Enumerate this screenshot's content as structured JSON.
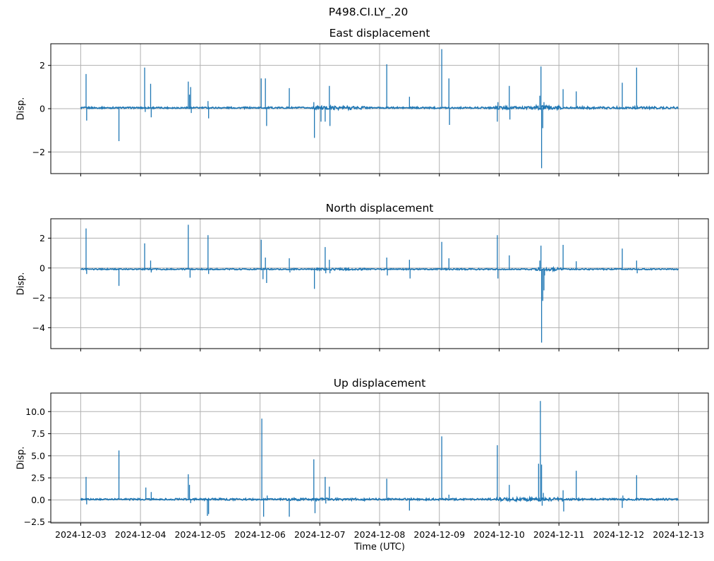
{
  "figure": {
    "suptitle": "P498.CI.LY_.20",
    "xlabel": "Time (UTC)",
    "line_color": "#1f77b4",
    "grid_color": "#b0b0b0",
    "frame_color": "#000000",
    "x_tick_labels": [
      "2024-12-03",
      "2024-12-04",
      "2024-12-05",
      "2024-12-06",
      "2024-12-07",
      "2024-12-08",
      "2024-12-09",
      "2024-12-10",
      "2024-12-11",
      "2024-12-12",
      "2024-12-13"
    ]
  },
  "chart_data": [
    {
      "type": "line",
      "title": "East displacement",
      "ylabel": "Disp.",
      "x_units": "days since 2024-12-03 00:00 UTC",
      "x_data_range_days": [
        0,
        10
      ],
      "xlim_days": [
        -0.5,
        10.5
      ],
      "ylim": [
        -3.0,
        3.0
      ],
      "yticks": [
        2,
        0,
        -2
      ],
      "ytick_labels": [
        "2",
        "0",
        "−2"
      ],
      "grid": true,
      "baseline": 0.04,
      "noise_base": 0.035,
      "noise_spans": [
        [
          3.9,
          4.75,
          0.08
        ],
        [
          6.9,
          7.6,
          0.06
        ],
        [
          7.6,
          8.05,
          0.1
        ],
        [
          8.3,
          9.95,
          0.05
        ]
      ],
      "spikes_day_value": [
        [
          0.09,
          1.6
        ],
        [
          0.1,
          -0.55
        ],
        [
          0.64,
          -1.5
        ],
        [
          1.07,
          1.9
        ],
        [
          1.08,
          -0.15
        ],
        [
          1.17,
          1.15
        ],
        [
          1.18,
          -0.4
        ],
        [
          1.8,
          1.25
        ],
        [
          1.82,
          0.65
        ],
        [
          1.84,
          1.0
        ],
        [
          1.85,
          -0.2
        ],
        [
          2.13,
          0.35
        ],
        [
          2.14,
          -0.45
        ],
        [
          3.02,
          1.4
        ],
        [
          3.09,
          1.4
        ],
        [
          3.11,
          -0.8
        ],
        [
          3.49,
          0.95
        ],
        [
          3.9,
          0.3
        ],
        [
          3.91,
          -1.35
        ],
        [
          4.02,
          -0.6
        ],
        [
          4.09,
          -0.6
        ],
        [
          4.16,
          1.05
        ],
        [
          4.17,
          -0.8
        ],
        [
          5.12,
          2.05
        ],
        [
          5.5,
          0.55
        ],
        [
          6.04,
          2.75
        ],
        [
          6.16,
          1.4
        ],
        [
          6.17,
          -0.75
        ],
        [
          6.97,
          -0.6
        ],
        [
          6.98,
          0.3
        ],
        [
          7.17,
          1.05
        ],
        [
          7.18,
          -0.5
        ],
        [
          7.68,
          0.6
        ],
        [
          7.7,
          1.95
        ],
        [
          7.71,
          -2.75
        ],
        [
          7.73,
          -0.9
        ],
        [
          7.75,
          0.3
        ],
        [
          8.07,
          0.9
        ],
        [
          8.29,
          0.8
        ],
        [
          9.06,
          1.2
        ],
        [
          9.3,
          1.9
        ]
      ]
    },
    {
      "type": "line",
      "title": "North displacement",
      "ylabel": "Disp.",
      "x_units": "days since 2024-12-03 00:00 UTC",
      "x_data_range_days": [
        0,
        10
      ],
      "xlim_days": [
        -0.5,
        10.5
      ],
      "ylim": [
        -5.4,
        3.3
      ],
      "yticks": [
        2,
        0,
        -2,
        -4
      ],
      "ytick_labels": [
        "2",
        "0",
        "−2",
        "−4"
      ],
      "grid": true,
      "baseline": -0.08,
      "noise_base": 0.04,
      "noise_spans": [
        [
          3.9,
          4.75,
          0.06
        ],
        [
          6.3,
          6.9,
          0.045
        ],
        [
          7.6,
          8.05,
          0.09
        ]
      ],
      "spikes_day_value": [
        [
          0.09,
          2.65
        ],
        [
          0.1,
          -0.4
        ],
        [
          0.64,
          -1.2
        ],
        [
          1.07,
          1.65
        ],
        [
          1.17,
          0.5
        ],
        [
          1.18,
          -0.3
        ],
        [
          1.8,
          2.9
        ],
        [
          1.83,
          -0.65
        ],
        [
          2.13,
          2.2
        ],
        [
          2.14,
          -0.4
        ],
        [
          3.02,
          1.9
        ],
        [
          3.05,
          -0.75
        ],
        [
          3.09,
          0.7
        ],
        [
          3.11,
          -1.0
        ],
        [
          3.49,
          0.65
        ],
        [
          3.5,
          -0.3
        ],
        [
          3.91,
          -1.4
        ],
        [
          4.09,
          1.4
        ],
        [
          4.1,
          -0.35
        ],
        [
          4.16,
          0.55
        ],
        [
          4.17,
          -0.35
        ],
        [
          5.12,
          0.7
        ],
        [
          5.13,
          -0.5
        ],
        [
          5.5,
          0.55
        ],
        [
          5.51,
          -0.7
        ],
        [
          6.04,
          1.75
        ],
        [
          6.16,
          0.65
        ],
        [
          6.97,
          2.2
        ],
        [
          6.98,
          -0.7
        ],
        [
          7.17,
          0.85
        ],
        [
          7.68,
          0.5
        ],
        [
          7.7,
          1.5
        ],
        [
          7.71,
          -5.0
        ],
        [
          7.73,
          -2.2
        ],
        [
          7.75,
          -1.5
        ],
        [
          7.76,
          -0.5
        ],
        [
          8.07,
          1.55
        ],
        [
          8.29,
          0.45
        ],
        [
          9.06,
          1.3
        ],
        [
          9.3,
          0.5
        ],
        [
          9.31,
          -0.35
        ]
      ]
    },
    {
      "type": "line",
      "title": "Up displacement",
      "ylabel": "Disp.",
      "x_units": "days since 2024-12-03 00:00 UTC",
      "x_data_range_days": [
        0,
        10
      ],
      "xlim_days": [
        -0.5,
        10.5
      ],
      "ylim": [
        -2.6,
        12.1
      ],
      "yticks": [
        10.0,
        7.5,
        5.0,
        2.5,
        0.0,
        -2.5
      ],
      "ytick_labels": [
        "10.0",
        "7.5",
        "5.0",
        "2.5",
        "0.0",
        "−2.5"
      ],
      "grid": true,
      "baseline": 0.07,
      "noise_base": 0.07,
      "noise_spans": [
        [
          0.7,
          1.8,
          0.09
        ],
        [
          1.9,
          3.0,
          0.1
        ],
        [
          3.3,
          4.75,
          0.13
        ],
        [
          4.8,
          6.9,
          0.1
        ],
        [
          6.95,
          8.1,
          0.18
        ],
        [
          8.15,
          9.95,
          0.1
        ]
      ],
      "spikes_day_value": [
        [
          0.09,
          2.6
        ],
        [
          0.1,
          -0.5
        ],
        [
          0.64,
          5.6
        ],
        [
          1.09,
          1.4
        ],
        [
          1.18,
          0.9
        ],
        [
          1.8,
          2.9
        ],
        [
          1.82,
          1.7
        ],
        [
          1.84,
          -0.35
        ],
        [
          2.12,
          -1.8
        ],
        [
          2.14,
          -1.6
        ],
        [
          3.03,
          9.2
        ],
        [
          3.06,
          -1.9
        ],
        [
          3.12,
          0.5
        ],
        [
          3.49,
          -1.9
        ],
        [
          3.9,
          4.6
        ],
        [
          3.92,
          -1.5
        ],
        [
          4.09,
          2.6
        ],
        [
          4.1,
          -0.4
        ],
        [
          4.16,
          1.5
        ],
        [
          5.12,
          2.4
        ],
        [
          5.5,
          -1.2
        ],
        [
          6.04,
          7.2
        ],
        [
          6.16,
          0.6
        ],
        [
          6.97,
          6.2
        ],
        [
          7.17,
          1.7
        ],
        [
          7.66,
          4.1
        ],
        [
          7.69,
          11.2
        ],
        [
          7.71,
          4.0
        ],
        [
          7.72,
          -0.65
        ],
        [
          7.74,
          0.8
        ],
        [
          8.07,
          1.1
        ],
        [
          8.08,
          -1.3
        ],
        [
          8.29,
          3.3
        ],
        [
          9.06,
          -0.9
        ],
        [
          9.07,
          0.5
        ],
        [
          9.3,
          2.8
        ]
      ]
    }
  ]
}
